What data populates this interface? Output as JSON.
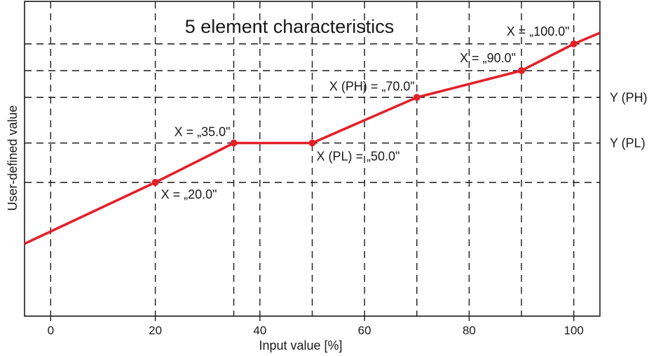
{
  "chart_data": {
    "type": "line",
    "title": "5 element characteristics",
    "xlabel": "Input value [%]",
    "ylabel": "User-defined value",
    "xlim": [
      -5,
      105
    ],
    "ylim": [
      0,
      100
    ],
    "x_ticks": [
      0,
      20,
      40,
      60,
      80,
      100
    ],
    "x_tick_labels": [
      "0",
      "20",
      "40",
      "60",
      "80",
      "100"
    ],
    "grid": "dashed",
    "y_unlabeled": true,
    "series": [
      {
        "color": "#e3202a",
        "points": [
          {
            "x": -5,
            "y": 23
          },
          {
            "x": 20,
            "y": 42.5
          },
          {
            "x": 35,
            "y": 55
          },
          {
            "x": 50,
            "y": 55
          },
          {
            "x": 70,
            "y": 69.5
          },
          {
            "x": 90,
            "y": 78
          },
          {
            "x": 100,
            "y": 86.5
          },
          {
            "x": 105,
            "y": 90
          }
        ]
      }
    ],
    "markers": [
      {
        "x": 20,
        "y": 42.5,
        "label": "X = „20.0\""
      },
      {
        "x": 35,
        "y": 55,
        "label": "X = „35.0\""
      },
      {
        "x": 50,
        "y": 55,
        "label": "X (PL) = „50.0\""
      },
      {
        "x": 70,
        "y": 69.5,
        "label": "X (PH) = „70.0\""
      },
      {
        "x": 90,
        "y": 78,
        "label": "X = „90.0\""
      },
      {
        "x": 100,
        "y": 86.5,
        "label": "X = „100.0\""
      }
    ],
    "y_reference_labels": [
      {
        "y": 69.5,
        "label": "Y (PH)"
      },
      {
        "y": 55,
        "label": "Y (PL)"
      }
    ],
    "colors": {
      "line": "#e3202a",
      "grid": "#1a1a1a",
      "frame": "#1a1a1a"
    }
  }
}
